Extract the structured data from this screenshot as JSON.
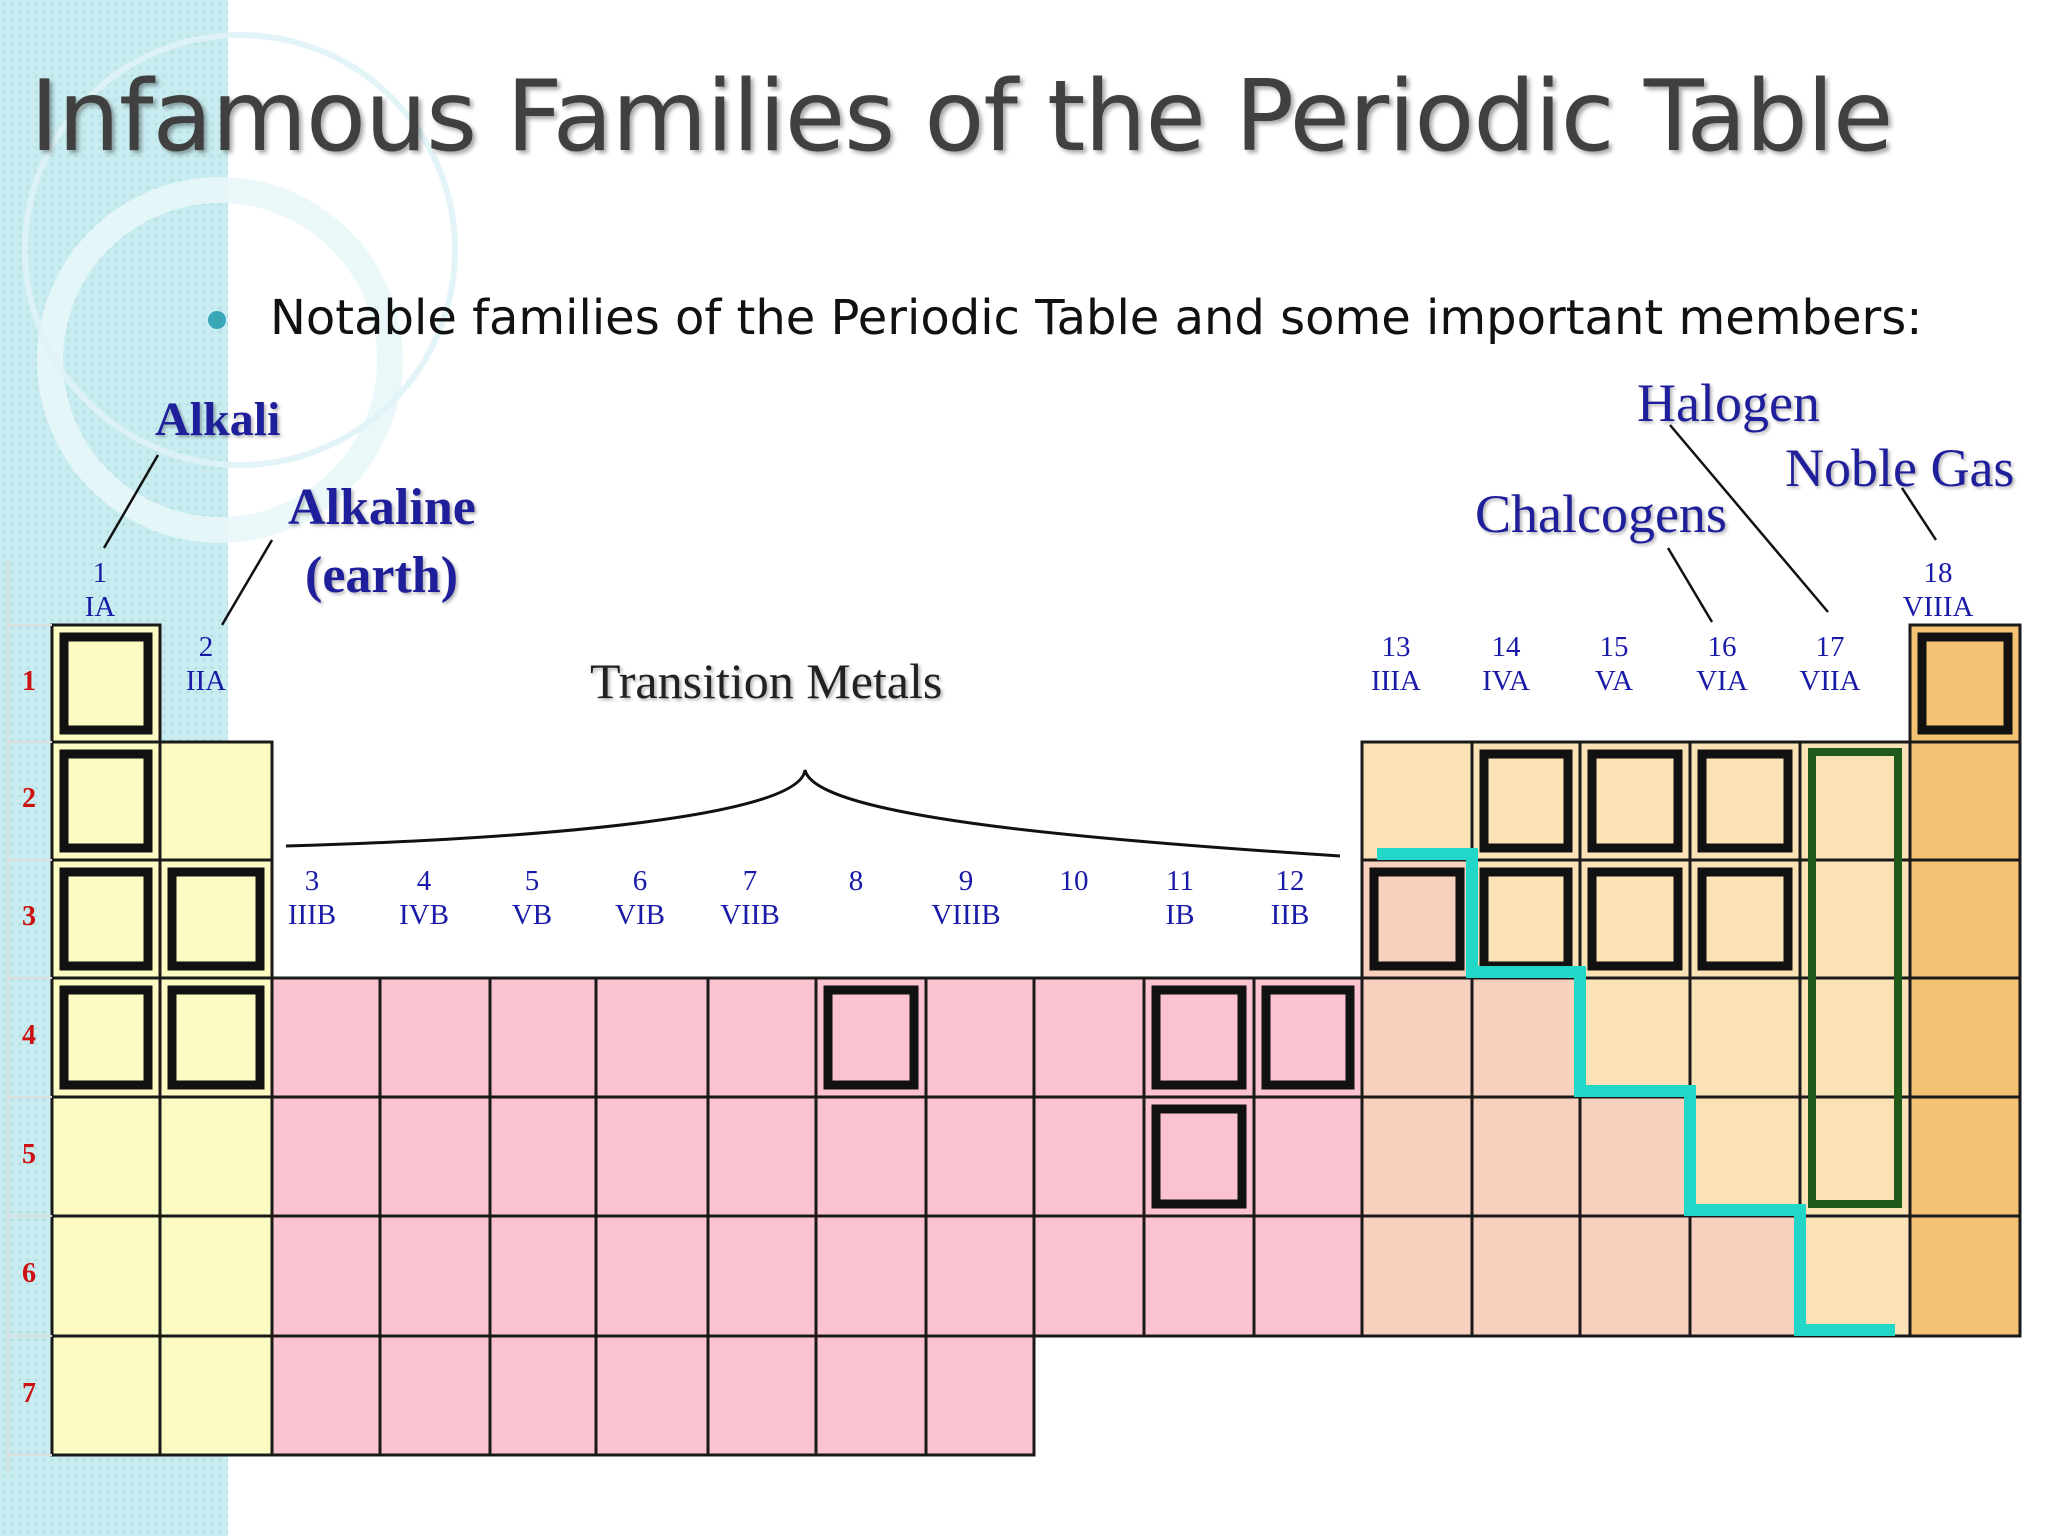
{
  "title": "Infamous Families of the Periodic Table",
  "bullet": "Notable families of the Periodic Table and some important members:",
  "families": {
    "alkali": "Alkali",
    "alkaline_line1": "Alkaline",
    "alkaline_line2": "(earth)",
    "chalcogens": "Chalcogens",
    "halogen": "Halogen",
    "noble_gas": "Noble Gas",
    "transition": "Transition Metals"
  },
  "groups": [
    {
      "num": "1",
      "roman": "IA"
    },
    {
      "num": "2",
      "roman": "IIA"
    },
    {
      "num": "3",
      "roman": "IIIB"
    },
    {
      "num": "4",
      "roman": "IVB"
    },
    {
      "num": "5",
      "roman": "VB"
    },
    {
      "num": "6",
      "roman": "VIB"
    },
    {
      "num": "7",
      "roman": "VIIB"
    },
    {
      "num": "8",
      "roman": ""
    },
    {
      "num": "9",
      "roman": "VIIIB"
    },
    {
      "num": "10",
      "roman": ""
    },
    {
      "num": "11",
      "roman": "IB"
    },
    {
      "num": "12",
      "roman": "IIB"
    },
    {
      "num": "13",
      "roman": "IIIA"
    },
    {
      "num": "14",
      "roman": "IVA"
    },
    {
      "num": "15",
      "roman": "VA"
    },
    {
      "num": "16",
      "roman": "VIA"
    },
    {
      "num": "17",
      "roman": "VIIA"
    },
    {
      "num": "18",
      "roman": "VIIIA"
    }
  ],
  "periods": [
    "1",
    "2",
    "3",
    "4",
    "5",
    "6",
    "7"
  ],
  "colors": {
    "s_block": "#fbfbc2",
    "transition": "#fbc3cf",
    "p_block": "#fbe1b6",
    "noble": "#f3c273",
    "metalloid": "#f8d0be",
    "staircase": "#22d6c8",
    "halogen_box": "#1f5a1a",
    "highlight": "#111111"
  }
}
